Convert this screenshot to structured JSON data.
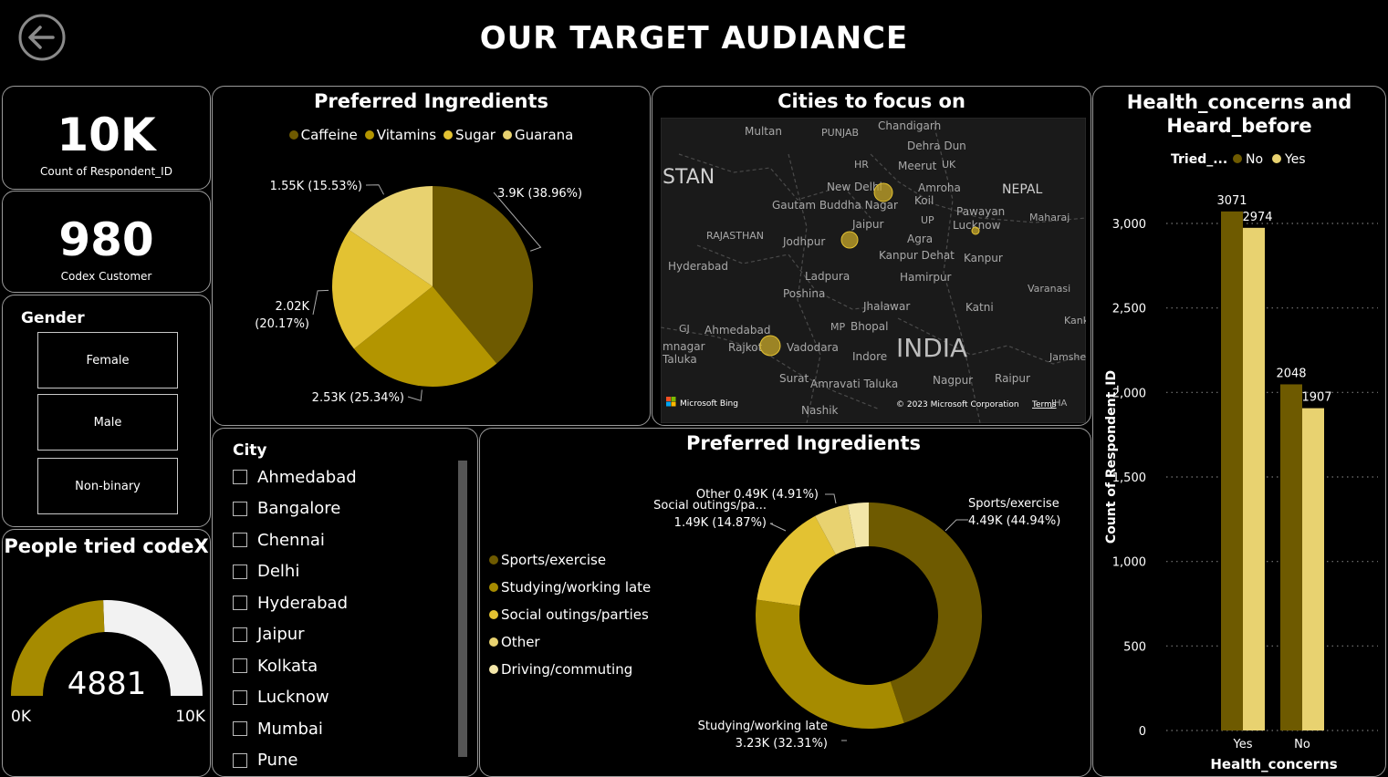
{
  "header": {
    "title": "OUR TARGET AUDIANCE",
    "back_icon": "back-arrow-icon"
  },
  "kpi_respondents": {
    "value": "10K",
    "label": "Count of Respondent_ID"
  },
  "kpi_customers": {
    "value": "980",
    "label": "Codex Customer"
  },
  "gender": {
    "title": "Gender",
    "options": [
      "Female",
      "Male",
      "Non-binary"
    ]
  },
  "gauge": {
    "title": "People tried codeX",
    "value_label": "4881",
    "min_label": "0K",
    "max_label": "10K",
    "value": 4881,
    "min": 0,
    "max": 10000,
    "fill_color": "#a68b00",
    "track_color": "#f2f2f2"
  },
  "map": {
    "title": "Cities to focus on",
    "attribution": "© 2023 Microsoft Corporation",
    "terms": "Terms",
    "bing": "Microsoft Bing",
    "labels": [
      "STAN",
      "Multan",
      "PUNJAB",
      "Chandigarh",
      "Dehra Dun",
      "HR",
      "UK",
      "Meerut",
      "New Delhi",
      "Amroha",
      "NEPAL",
      "Gautam Buddha Nagar",
      "Koil",
      "Pawayan",
      "Maharaj",
      "RAJASTHAN",
      "Jaipur",
      "UP",
      "Lucknow",
      "Jodhpur",
      "Agra",
      "Hyderabad",
      "Kanpur Dehat",
      "Kanpur",
      "Ladpura",
      "Hamirpur",
      "Varanasi",
      "Poshina",
      "Jhalawar",
      "GJ",
      "Ahmedabad",
      "MP",
      "Bhopal",
      "Katni",
      "Kanke",
      "mnagar",
      "Rajkot",
      "Vadodara",
      "INDIA",
      "Taluka",
      "Indore",
      "Jamshed",
      "Surat",
      "Amravati Taluka",
      "Nagpur",
      "Raipur",
      "Nashik",
      "JHA"
    ]
  },
  "city": {
    "title": "City",
    "items": [
      "Ahmedabad",
      "Bangalore",
      "Chennai",
      "Delhi",
      "Hyderabad",
      "Jaipur",
      "Kolkata",
      "Lucknow",
      "Mumbai",
      "Pune"
    ]
  },
  "chart_data": [
    {
      "type": "pie",
      "title": "Preferred Ingredients",
      "legend_position": "top",
      "categories": [
        "Caffeine",
        "Vitamins",
        "Sugar",
        "Guarana"
      ],
      "values": [
        38.96,
        25.34,
        20.17,
        15.53
      ],
      "value_labels": [
        "3.9K (38.96%)",
        "2.53K (25.34%)",
        "2.02K (20.17%)",
        "1.55K (15.53%)"
      ],
      "colors": [
        "#6e5a00",
        "#b39500",
        "#e3c232",
        "#e8d270"
      ]
    },
    {
      "type": "pie",
      "title": "Preferred Ingredients",
      "legend_position": "left",
      "categories": [
        "Sports/exercise",
        "Studying/working late",
        "Social outings/parties",
        "Other",
        "Driving/commuting"
      ],
      "values": [
        44.94,
        32.31,
        14.87,
        4.91,
        2.97
      ],
      "slice_labels": [
        [
          "Sports/exercise",
          "4.49K (44.94%)"
        ],
        [
          "Studying/working late",
          "3.23K (32.31%)"
        ],
        [
          "Social outings/pa...",
          "1.49K (14.87%)"
        ],
        [
          "Other 0.49K (4.91%)"
        ]
      ],
      "colors": [
        "#6e5a00",
        "#a68b00",
        "#e3c232",
        "#e8d270",
        "#f3e6a8"
      ]
    },
    {
      "type": "bar",
      "title": "Health_concerns and Heard_before",
      "legend_title": "Tried_...",
      "xlabel": "Health_concerns",
      "ylabel": "Count of Respondent_ID",
      "categories": [
        "Yes",
        "No"
      ],
      "series": [
        {
          "name": "No",
          "values": [
            3071,
            2048
          ],
          "color": "#6e5a00"
        },
        {
          "name": "Yes",
          "values": [
            2974,
            1907
          ],
          "color": "#e8d270"
        }
      ],
      "ylim": [
        0,
        3500
      ],
      "yticks": [
        0,
        500,
        1000,
        1500,
        2000,
        2500,
        3000
      ],
      "ytick_labels": [
        "0",
        "500",
        "1,000",
        "1,500",
        "2,000",
        "2,500",
        "3,000"
      ],
      "grid": true
    }
  ]
}
